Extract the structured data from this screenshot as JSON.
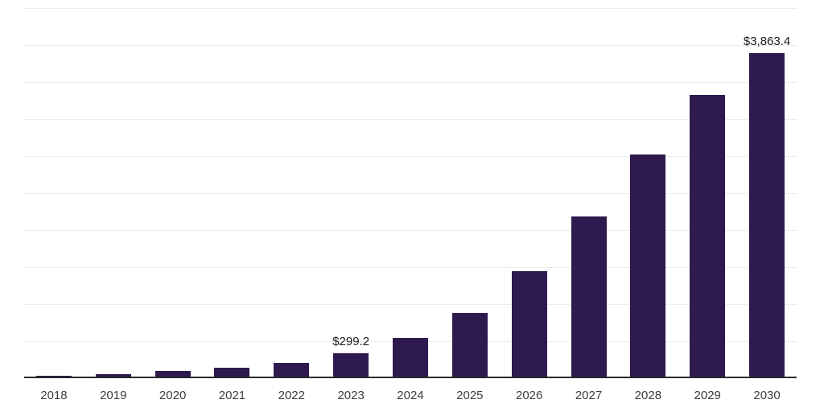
{
  "chart_data": {
    "type": "bar",
    "title": "",
    "xlabel": "",
    "ylabel": "",
    "categories": [
      "2018",
      "2019",
      "2020",
      "2021",
      "2022",
      "2023",
      "2024",
      "2025",
      "2026",
      "2027",
      "2028",
      "2029",
      "2030"
    ],
    "values": [
      30,
      46,
      82,
      122,
      186,
      299.2,
      480,
      772,
      1268,
      1920,
      2655,
      3368,
      3863.4
    ],
    "data_labels": [
      "",
      "",
      "",
      "",
      "",
      "$299.2",
      "",
      "",
      "",
      "",
      "",
      "",
      "$3,863.4"
    ],
    "ylim": [
      0,
      4400
    ],
    "grid": true,
    "gridline_count": 10,
    "bar_color": "#2e1a4f",
    "gridline_color": "#ececec",
    "axis_line_color": "#2b2b2b",
    "label_color": "#1a1a1a",
    "tick_label_color": "#3d3d3d",
    "legend_position": "none"
  }
}
